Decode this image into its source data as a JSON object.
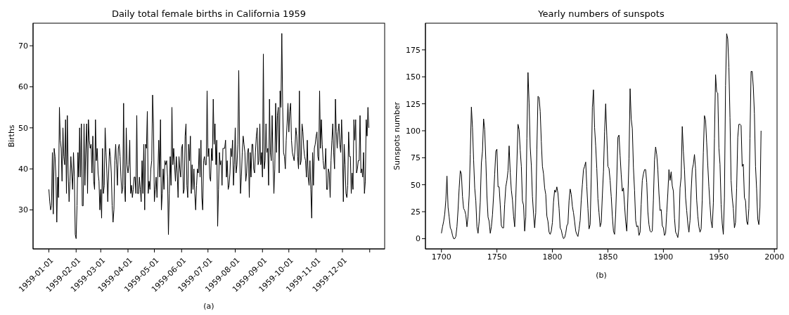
{
  "chart_data": [
    {
      "type": "line",
      "title": "Daily total female births in California 1959",
      "xlabel": "(a)",
      "ylabel": "Births",
      "color": "#000000",
      "x": [
        "1959-01-01",
        "1959-01-02",
        "1959-01-03",
        "1959-01-04",
        "1959-01-05",
        "1959-01-06",
        "1959-01-07",
        "1959-01-08",
        "1959-01-09",
        "1959-01-10",
        "1959-01-11",
        "1959-01-12",
        "1959-01-13",
        "1959-01-14",
        "1959-01-15",
        "1959-01-16",
        "1959-01-17",
        "1959-01-18",
        "1959-01-19",
        "1959-01-20",
        "1959-01-21",
        "1959-01-22",
        "1959-01-23",
        "1959-01-24",
        "1959-01-25",
        "1959-01-26",
        "1959-01-27",
        "1959-01-28",
        "1959-01-29",
        "1959-01-30",
        "1959-01-31",
        "1959-02-01",
        "1959-02-02",
        "1959-02-03",
        "1959-02-04",
        "1959-02-05",
        "1959-02-06",
        "1959-02-07",
        "1959-02-08",
        "1959-02-09",
        "1959-02-10",
        "1959-02-11",
        "1959-02-12",
        "1959-02-13",
        "1959-02-14",
        "1959-02-15",
        "1959-02-16",
        "1959-02-17",
        "1959-02-18",
        "1959-02-19",
        "1959-02-20",
        "1959-02-21",
        "1959-02-22",
        "1959-02-23",
        "1959-02-24",
        "1959-02-25",
        "1959-02-26",
        "1959-02-27",
        "1959-02-28",
        "1959-03-01",
        "1959-03-02",
        "1959-03-03",
        "1959-03-04",
        "1959-03-05",
        "1959-03-06",
        "1959-03-07",
        "1959-03-08",
        "1959-03-09",
        "1959-03-10",
        "1959-03-11",
        "1959-03-12",
        "1959-03-13",
        "1959-03-14",
        "1959-03-15",
        "1959-03-16",
        "1959-03-17",
        "1959-03-18",
        "1959-03-19",
        "1959-03-20",
        "1959-03-21",
        "1959-03-22",
        "1959-03-23",
        "1959-03-24",
        "1959-03-25",
        "1959-03-26",
        "1959-03-27",
        "1959-03-28",
        "1959-03-29",
        "1959-03-30",
        "1959-03-31",
        "1959-04-01",
        "1959-04-02",
        "1959-04-03",
        "1959-04-04",
        "1959-04-05",
        "1959-04-06",
        "1959-04-07",
        "1959-04-08",
        "1959-04-09",
        "1959-04-10",
        "1959-04-11",
        "1959-04-12",
        "1959-04-13",
        "1959-04-14",
        "1959-04-15",
        "1959-04-16",
        "1959-04-17",
        "1959-04-18",
        "1959-04-19",
        "1959-04-20",
        "1959-04-21",
        "1959-04-22",
        "1959-04-23",
        "1959-04-24",
        "1959-04-25",
        "1959-04-26",
        "1959-04-27",
        "1959-04-28",
        "1959-04-29",
        "1959-04-30",
        "1959-05-01",
        "1959-05-02",
        "1959-05-03",
        "1959-05-04",
        "1959-05-05",
        "1959-05-06",
        "1959-05-07",
        "1959-05-08",
        "1959-05-09",
        "1959-05-10",
        "1959-05-11",
        "1959-05-12",
        "1959-05-13",
        "1959-05-14",
        "1959-05-15",
        "1959-05-16",
        "1959-05-17",
        "1959-05-18",
        "1959-05-19",
        "1959-05-20",
        "1959-05-21",
        "1959-05-22",
        "1959-05-23",
        "1959-05-24",
        "1959-05-25",
        "1959-05-26",
        "1959-05-27",
        "1959-05-28",
        "1959-05-29",
        "1959-05-30",
        "1959-05-31",
        "1959-06-01",
        "1959-06-02",
        "1959-06-03",
        "1959-06-04",
        "1959-06-05",
        "1959-06-06",
        "1959-06-07",
        "1959-06-08",
        "1959-06-09",
        "1959-06-10",
        "1959-06-11",
        "1959-06-12",
        "1959-06-13",
        "1959-06-14",
        "1959-06-15",
        "1959-06-16",
        "1959-06-17",
        "1959-06-18",
        "1959-06-19",
        "1959-06-20",
        "1959-06-21",
        "1959-06-22",
        "1959-06-23",
        "1959-06-24",
        "1959-06-25",
        "1959-06-26",
        "1959-06-27",
        "1959-06-28",
        "1959-06-29",
        "1959-06-30",
        "1959-07-01",
        "1959-07-02",
        "1959-07-03",
        "1959-07-04",
        "1959-07-05",
        "1959-07-06",
        "1959-07-07",
        "1959-07-08",
        "1959-07-09",
        "1959-07-10",
        "1959-07-11",
        "1959-07-12",
        "1959-07-13",
        "1959-07-14",
        "1959-07-15",
        "1959-07-16",
        "1959-07-17",
        "1959-07-18",
        "1959-07-19",
        "1959-07-20",
        "1959-07-21",
        "1959-07-22",
        "1959-07-23",
        "1959-07-24",
        "1959-07-25",
        "1959-07-26",
        "1959-07-27",
        "1959-07-28",
        "1959-07-29",
        "1959-07-30",
        "1959-07-31",
        "1959-08-01",
        "1959-08-02",
        "1959-08-03",
        "1959-08-04",
        "1959-08-05",
        "1959-08-06",
        "1959-08-07",
        "1959-08-08",
        "1959-08-09",
        "1959-08-10",
        "1959-08-11",
        "1959-08-12",
        "1959-08-13",
        "1959-08-14",
        "1959-08-15",
        "1959-08-16",
        "1959-08-17",
        "1959-08-18",
        "1959-08-19",
        "1959-08-20",
        "1959-08-21",
        "1959-08-22",
        "1959-08-23",
        "1959-08-24",
        "1959-08-25",
        "1959-08-26",
        "1959-08-27",
        "1959-08-28",
        "1959-08-29",
        "1959-08-30",
        "1959-08-31",
        "1959-09-01",
        "1959-09-02",
        "1959-09-03",
        "1959-09-04",
        "1959-09-05",
        "1959-09-06",
        "1959-09-07",
        "1959-09-08",
        "1959-09-09",
        "1959-09-10",
        "1959-09-11",
        "1959-09-12",
        "1959-09-13",
        "1959-09-14",
        "1959-09-15",
        "1959-09-16",
        "1959-09-17",
        "1959-09-18",
        "1959-09-19",
        "1959-09-20",
        "1959-09-21",
        "1959-09-22",
        "1959-09-23",
        "1959-09-24",
        "1959-09-25",
        "1959-09-26",
        "1959-09-27",
        "1959-09-28",
        "1959-09-29",
        "1959-09-30",
        "1959-10-01",
        "1959-10-02",
        "1959-10-03",
        "1959-10-04",
        "1959-10-05",
        "1959-10-06",
        "1959-10-07",
        "1959-10-08",
        "1959-10-09",
        "1959-10-10",
        "1959-10-11",
        "1959-10-12",
        "1959-10-13",
        "1959-10-14",
        "1959-10-15",
        "1959-10-16",
        "1959-10-17",
        "1959-10-18",
        "1959-10-19",
        "1959-10-20",
        "1959-10-21",
        "1959-10-22",
        "1959-10-23",
        "1959-10-24",
        "1959-10-25",
        "1959-10-26",
        "1959-10-27",
        "1959-10-28",
        "1959-10-29",
        "1959-10-30",
        "1959-10-31",
        "1959-11-01",
        "1959-11-02",
        "1959-11-03",
        "1959-11-04",
        "1959-11-05",
        "1959-11-06",
        "1959-11-07",
        "1959-11-08",
        "1959-11-09",
        "1959-11-10",
        "1959-11-11",
        "1959-11-12",
        "1959-11-13",
        "1959-11-14",
        "1959-11-15",
        "1959-11-16",
        "1959-11-17",
        "1959-11-18",
        "1959-11-19",
        "1959-11-20",
        "1959-11-21",
        "1959-11-22",
        "1959-11-23",
        "1959-11-24",
        "1959-11-25",
        "1959-11-26",
        "1959-11-27",
        "1959-11-28",
        "1959-11-29",
        "1959-11-30",
        "1959-12-01",
        "1959-12-02",
        "1959-12-03",
        "1959-12-04",
        "1959-12-05",
        "1959-12-06",
        "1959-12-07",
        "1959-12-08",
        "1959-12-09",
        "1959-12-10",
        "1959-12-11",
        "1959-12-12",
        "1959-12-13",
        "1959-12-14",
        "1959-12-15",
        "1959-12-16",
        "1959-12-17",
        "1959-12-18",
        "1959-12-19",
        "1959-12-20",
        "1959-12-21",
        "1959-12-22",
        "1959-12-23",
        "1959-12-24",
        "1959-12-25",
        "1959-12-26",
        "1959-12-27",
        "1959-12-28",
        "1959-12-29",
        "1959-12-30",
        "1959-12-31"
      ],
      "values": [
        35,
        32,
        30,
        31,
        44,
        29,
        45,
        43,
        38,
        27,
        38,
        33,
        55,
        47,
        45,
        37,
        50,
        43,
        41,
        52,
        34,
        53,
        39,
        32,
        37,
        43,
        39,
        35,
        44,
        38,
        24,
        23,
        31,
        44,
        38,
        50,
        38,
        51,
        31,
        31,
        51,
        36,
        45,
        51,
        34,
        52,
        47,
        45,
        46,
        39,
        48,
        37,
        35,
        52,
        42,
        45,
        39,
        37,
        30,
        35,
        28,
        45,
        34,
        36,
        50,
        44,
        39,
        32,
        39,
        45,
        43,
        39,
        31,
        27,
        30,
        42,
        46,
        41,
        36,
        45,
        46,
        43,
        38,
        34,
        35,
        56,
        36,
        32,
        50,
        41,
        39,
        41,
        47,
        34,
        36,
        33,
        35,
        38,
        38,
        34,
        53,
        34,
        34,
        38,
        35,
        32,
        42,
        34,
        46,
        30,
        46,
        45,
        54,
        34,
        37,
        35,
        40,
        42,
        58,
        51,
        32,
        35,
        38,
        33,
        39,
        47,
        38,
        52,
        30,
        34,
        40,
        35,
        42,
        41,
        42,
        38,
        24,
        34,
        43,
        36,
        55,
        41,
        45,
        41,
        37,
        43,
        39,
        33,
        43,
        40,
        38,
        45,
        46,
        34,
        35,
        48,
        51,
        36,
        33,
        46,
        42,
        48,
        34,
        41,
        35,
        40,
        34,
        30,
        36,
        40,
        39,
        45,
        38,
        47,
        33,
        30,
        42,
        43,
        41,
        41,
        59,
        43,
        45,
        38,
        37,
        45,
        42,
        57,
        46,
        51,
        41,
        47,
        26,
        35,
        44,
        41,
        42,
        36,
        45,
        45,
        45,
        47,
        38,
        42,
        35,
        36,
        39,
        45,
        43,
        47,
        36,
        41,
        50,
        39,
        41,
        46,
        64,
        45,
        34,
        38,
        44,
        48,
        46,
        44,
        37,
        39,
        44,
        45,
        33,
        44,
        38,
        46,
        46,
        40,
        39,
        44,
        48,
        50,
        41,
        42,
        51,
        41,
        44,
        38,
        68,
        40,
        42,
        51,
        44,
        45,
        36,
        57,
        44,
        42,
        53,
        42,
        34,
        40,
        56,
        44,
        53,
        55,
        39,
        59,
        55,
        73,
        55,
        44,
        43,
        40,
        47,
        51,
        56,
        49,
        54,
        56,
        47,
        44,
        43,
        42,
        45,
        50,
        48,
        43,
        40,
        59,
        41,
        42,
        51,
        49,
        45,
        43,
        42,
        38,
        47,
        38,
        36,
        42,
        35,
        28,
        44,
        36,
        45,
        46,
        48,
        49,
        43,
        42,
        59,
        45,
        52,
        46,
        42,
        40,
        40,
        45,
        35,
        35,
        40,
        39,
        33,
        42,
        47,
        51,
        44,
        40,
        57,
        49,
        45,
        49,
        51,
        46,
        44,
        52,
        45,
        32,
        46,
        41,
        34,
        33,
        36,
        49,
        43,
        43,
        34,
        39,
        35,
        52,
        47,
        52,
        39,
        40,
        42,
        42,
        53,
        39,
        40,
        38,
        44,
        34,
        37,
        52,
        48,
        55,
        50
      ],
      "xlim": [
        "1958-12-14",
        "1960-01-18"
      ],
      "xticks": [
        "1959-01-01",
        "1959-02-01",
        "1959-03-01",
        "1959-04-01",
        "1959-05-01",
        "1959-06-01",
        "1959-07-01",
        "1959-08-01",
        "1959-09-01",
        "1959-10-01",
        "1959-11-01",
        "1959-12-01",
        {
          "value": "1960-01-01",
          "label": null
        }
      ],
      "ylim": [
        20.5,
        75.5
      ],
      "yticks": [
        30,
        40,
        50,
        60,
        70
      ]
    },
    {
      "type": "line",
      "title": "Yearly numbers of sunspots",
      "xlabel": "(b)",
      "ylabel": "Sunspots number",
      "color": "#000000",
      "x": [
        1700,
        1701,
        1702,
        1703,
        1704,
        1705,
        1706,
        1707,
        1708,
        1709,
        1710,
        1711,
        1712,
        1713,
        1714,
        1715,
        1716,
        1717,
        1718,
        1719,
        1720,
        1721,
        1722,
        1723,
        1724,
        1725,
        1726,
        1727,
        1728,
        1729,
        1730,
        1731,
        1732,
        1733,
        1734,
        1735,
        1736,
        1737,
        1738,
        1739,
        1740,
        1741,
        1742,
        1743,
        1744,
        1745,
        1746,
        1747,
        1748,
        1749,
        1750,
        1751,
        1752,
        1753,
        1754,
        1755,
        1756,
        1757,
        1758,
        1759,
        1760,
        1761,
        1762,
        1763,
        1764,
        1765,
        1766,
        1767,
        1768,
        1769,
        1770,
        1771,
        1772,
        1773,
        1774,
        1775,
        1776,
        1777,
        1778,
        1779,
        1780,
        1781,
        1782,
        1783,
        1784,
        1785,
        1786,
        1787,
        1788,
        1789,
        1790,
        1791,
        1792,
        1793,
        1794,
        1795,
        1796,
        1797,
        1798,
        1799,
        1800,
        1801,
        1802,
        1803,
        1804,
        1805,
        1806,
        1807,
        1808,
        1809,
        1810,
        1811,
        1812,
        1813,
        1814,
        1815,
        1816,
        1817,
        1818,
        1819,
        1820,
        1821,
        1822,
        1823,
        1824,
        1825,
        1826,
        1827,
        1828,
        1829,
        1830,
        1831,
        1832,
        1833,
        1834,
        1835,
        1836,
        1837,
        1838,
        1839,
        1840,
        1841,
        1842,
        1843,
        1844,
        1845,
        1846,
        1847,
        1848,
        1849,
        1850,
        1851,
        1852,
        1853,
        1854,
        1855,
        1856,
        1857,
        1858,
        1859,
        1860,
        1861,
        1862,
        1863,
        1864,
        1865,
        1866,
        1867,
        1868,
        1869,
        1870,
        1871,
        1872,
        1873,
        1874,
        1875,
        1876,
        1877,
        1878,
        1879,
        1880,
        1881,
        1882,
        1883,
        1884,
        1885,
        1886,
        1887,
        1888,
        1889,
        1890,
        1891,
        1892,
        1893,
        1894,
        1895,
        1896,
        1897,
        1898,
        1899,
        1900,
        1901,
        1902,
        1903,
        1904,
        1905,
        1906,
        1907,
        1908,
        1909,
        1910,
        1911,
        1912,
        1913,
        1914,
        1915,
        1916,
        1917,
        1918,
        1919,
        1920,
        1921,
        1922,
        1923,
        1924,
        1925,
        1926,
        1927,
        1928,
        1929,
        1930,
        1931,
        1932,
        1933,
        1934,
        1935,
        1936,
        1937,
        1938,
        1939,
        1940,
        1941,
        1942,
        1943,
        1944,
        1945,
        1946,
        1947,
        1948,
        1949,
        1950,
        1951,
        1952,
        1953,
        1954,
        1955,
        1956,
        1957,
        1958,
        1959,
        1960,
        1961,
        1962,
        1963,
        1964,
        1965,
        1966,
        1967,
        1968,
        1969,
        1970,
        1971,
        1972,
        1973,
        1974,
        1975,
        1976,
        1977,
        1978,
        1979,
        1980,
        1981,
        1982,
        1983,
        1984,
        1985,
        1986,
        1987,
        1988
      ],
      "values": [
        5,
        11,
        16,
        23,
        36,
        58,
        29,
        20,
        10,
        8,
        3,
        0,
        0,
        2,
        11,
        27,
        47,
        63,
        60,
        39,
        28,
        26,
        22,
        11,
        21,
        40,
        78,
        122,
        103,
        73,
        47,
        35,
        11,
        5,
        16,
        34,
        70,
        81,
        111,
        101,
        73,
        40,
        20,
        16,
        5,
        11,
        22,
        40,
        60,
        81,
        83,
        48,
        48,
        31,
        12,
        10,
        10,
        32,
        48,
        54,
        63,
        86,
        61,
        45,
        36,
        21,
        11,
        38,
        70,
        106,
        101,
        82,
        67,
        35,
        31,
        7,
        20,
        93,
        154,
        126,
        85,
        68,
        39,
        23,
        10,
        24,
        83,
        132,
        131,
        118,
        90,
        67,
        60,
        47,
        41,
        21,
        16,
        6,
        4,
        7,
        15,
        34,
        45,
        43,
        48,
        42,
        28,
        10,
        8,
        3,
        0,
        1,
        5,
        12,
        14,
        35,
        46,
        41,
        30,
        24,
        16,
        7,
        4,
        2,
        9,
        17,
        36,
        50,
        64,
        67,
        71,
        48,
        28,
        9,
        13,
        57,
        122,
        138,
        103,
        86,
        65,
        37,
        24,
        11,
        15,
        40,
        62,
        99,
        125,
        96,
        67,
        65,
        54,
        39,
        21,
        7,
        4,
        23,
        55,
        94,
        96,
        77,
        59,
        44,
        47,
        31,
        16,
        7,
        38,
        74,
        139,
        111,
        102,
        66,
        45,
        17,
        11,
        12,
        3,
        6,
        32,
        54,
        60,
        64,
        64,
        52,
        25,
        13,
        7,
        6,
        7,
        36,
        73,
        85,
        78,
        64,
        42,
        26,
        27,
        12,
        10,
        3,
        5,
        24,
        42,
        64,
        54,
        62,
        49,
        44,
        19,
        6,
        4,
        1,
        10,
        47,
        57,
        104,
        81,
        64,
        38,
        26,
        14,
        6,
        17,
        44,
        64,
        69,
        78,
        65,
        36,
        21,
        11,
        6,
        9,
        36,
        80,
        114,
        110,
        89,
        68,
        48,
        31,
        16,
        10,
        33,
        93,
        152,
        136,
        135,
        84,
        69,
        32,
        14,
        4,
        38,
        142,
        190,
        185,
        159,
        112,
        54,
        38,
        28,
        10,
        15,
        47,
        94,
        106,
        106,
        105,
        67,
        69,
        38,
        35,
        16,
        13,
        28,
        93,
        155,
        155,
        141,
        116,
        67,
        46,
        18,
        13,
        29,
        100
      ],
      "xlim": [
        1685.6,
        2002.4
      ],
      "xticks": [
        1700,
        1750,
        1800,
        1850,
        1900,
        1950,
        2000
      ],
      "ylim": [
        -9.5,
        199.7
      ],
      "yticks": [
        0,
        25,
        50,
        75,
        100,
        125,
        150,
        175
      ]
    }
  ]
}
